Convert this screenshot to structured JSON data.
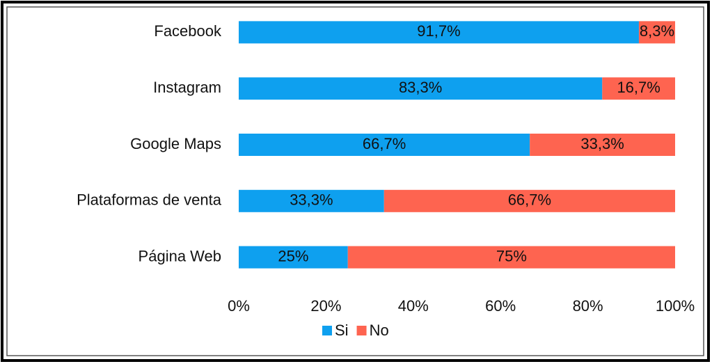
{
  "chart_data": {
    "type": "stacked-bar-horizontal",
    "categories": [
      "Facebook",
      "Instagram",
      "Google Maps",
      "Plataformas de venta",
      "Página Web"
    ],
    "series": [
      {
        "name": "Si",
        "color": "#0ea0ef",
        "values": [
          91.7,
          83.3,
          66.7,
          33.3,
          25
        ],
        "value_labels": [
          "91,7%",
          "83,3%",
          "66,7%",
          "33,3%",
          "25%"
        ]
      },
      {
        "name": "No",
        "color": "#fe6450",
        "values": [
          8.3,
          16.7,
          33.3,
          66.7,
          75
        ],
        "value_labels": [
          "8,3%",
          "16,7%",
          "33,3%",
          "66,7%",
          "75%"
        ]
      }
    ],
    "xlim": [
      0,
      100
    ],
    "xticks": [
      {
        "value": 0,
        "label": "0%"
      },
      {
        "value": 20,
        "label": "20%"
      },
      {
        "value": 40,
        "label": "40%"
      },
      {
        "value": 60,
        "label": "60%"
      },
      {
        "value": 80,
        "label": "80%"
      },
      {
        "value": 100,
        "label": "100%"
      }
    ],
    "legend": "bottom"
  }
}
